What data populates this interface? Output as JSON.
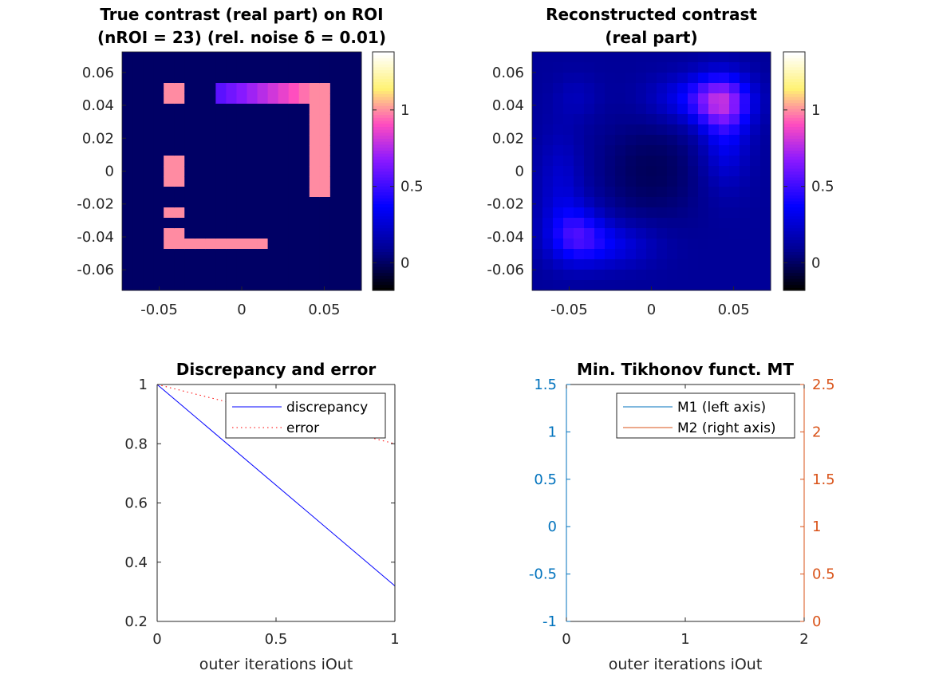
{
  "chart_data": [
    {
      "type": "heatmap",
      "title": [
        "True contrast (real part) on ROI",
        "(nROI = 23) (rel. noise δ = 0.01)"
      ],
      "x_ticks": [
        -0.05,
        0,
        0.05
      ],
      "y_ticks": [
        0.06,
        0.04,
        0.02,
        0,
        -0.02,
        -0.04,
        -0.06
      ],
      "x_tick_labels": [
        "-0.05",
        "0",
        "0.05"
      ],
      "y_tick_labels": [
        "0.06",
        "0.04",
        "0.02",
        "0",
        "-0.02",
        "-0.04",
        "-0.06"
      ],
      "xlim": [
        -0.0725,
        0.0725
      ],
      "ylim": [
        -0.0725,
        0.0725
      ],
      "grid_size": 23,
      "background": 0,
      "blocks": [
        {
          "x": [
            -0.05,
            -0.0375
          ],
          "y": [
            0.0425,
            0.055
          ],
          "value": 1.0
        },
        {
          "x": [
            -0.05,
            -0.0375
          ],
          "y": [
            0.005,
            0.0125
          ],
          "value": 1.0
        },
        {
          "x": [
            -0.05,
            -0.0375
          ],
          "y": [
            -0.0075,
            0.0
          ],
          "value": 1.0
        },
        {
          "x": [
            -0.05,
            -0.0375
          ],
          "y": [
            -0.03,
            -0.0225
          ],
          "value": 1.0
        },
        {
          "x": [
            -0.05,
            -0.0375
          ],
          "y": [
            -0.0475,
            -0.035
          ],
          "value": 1.0
        },
        {
          "x": [
            -0.0375,
            0.0175
          ],
          "y": [
            -0.0475,
            -0.0413
          ],
          "value": 1.0
        },
        {
          "x": [
            0.0425,
            0.055
          ],
          "y": [
            -0.015,
            0.055
          ],
          "value": 1.0
        },
        {
          "x": [
            -0.015,
            0.0425
          ],
          "y": [
            0.0425,
            0.055
          ],
          "gradient": [
            0.55,
            1.0
          ]
        }
      ],
      "colorbar": {
        "colormap": "gnuplot2",
        "limits": [
          -0.18,
          1.38
        ],
        "ticks": [
          0,
          0.5,
          1
        ],
        "tick_labels": [
          "0",
          "0.5",
          "1"
        ]
      }
    },
    {
      "type": "heatmap",
      "title": [
        "Reconstructed contrast",
        "(real part)"
      ],
      "x_ticks": [
        -0.05,
        0,
        0.05
      ],
      "y_ticks": [
        0.06,
        0.04,
        0.02,
        0,
        -0.02,
        -0.04,
        -0.06
      ],
      "x_tick_labels": [
        "-0.05",
        "0",
        "0.05"
      ],
      "y_tick_labels": [
        "0.06",
        "0.04",
        "0.02",
        "0",
        "-0.02",
        "-0.04",
        "-0.06"
      ],
      "xlim": [
        -0.0725,
        0.0725
      ],
      "ylim": [
        -0.0725,
        0.0725
      ],
      "grid_size": 23,
      "background": 0.1,
      "blobs": [
        {
          "x": 0.043,
          "y": 0.042,
          "sx": 0.012,
          "sy": 0.012,
          "amp": 0.42
        },
        {
          "x": 0.028,
          "y": 0.044,
          "sx": 0.02,
          "sy": 0.01,
          "amp": 0.25
        },
        {
          "x": 0.045,
          "y": 0.018,
          "sx": 0.01,
          "sy": 0.02,
          "amp": 0.22
        },
        {
          "x": -0.045,
          "y": -0.038,
          "sx": 0.012,
          "sy": 0.012,
          "amp": 0.3
        },
        {
          "x": -0.025,
          "y": -0.045,
          "sx": 0.02,
          "sy": 0.01,
          "amp": 0.2
        },
        {
          "x": -0.055,
          "y": -0.01,
          "sx": 0.01,
          "sy": 0.025,
          "amp": 0.15
        },
        {
          "x": -0.045,
          "y": 0.045,
          "sx": 0.01,
          "sy": 0.01,
          "amp": 0.08
        },
        {
          "x": 0.0,
          "y": 0.0,
          "sx": 0.022,
          "sy": 0.022,
          "amp": -0.12
        }
      ],
      "colorbar": {
        "colormap": "gnuplot2",
        "limits": [
          -0.18,
          1.38
        ],
        "ticks": [
          0,
          0.5,
          1
        ],
        "tick_labels": [
          "0",
          "0.5",
          "1"
        ]
      }
    },
    {
      "type": "line",
      "title": "Discrepancy and error",
      "xlabel": "outer iterations iOut",
      "ylabel": "",
      "xlim": [
        0,
        1
      ],
      "ylim": [
        0.2,
        1
      ],
      "x_ticks": [
        0,
        0.5,
        1
      ],
      "y_ticks": [
        0.2,
        0.4,
        0.6,
        0.8,
        1
      ],
      "x_tick_labels": [
        "0",
        "0.5",
        "1"
      ],
      "y_tick_labels": [
        "0.2",
        "0.4",
        "0.6",
        "0.8",
        "1"
      ],
      "legend": "top-right",
      "series": [
        {
          "name": "discrepancy",
          "x": [
            0,
            1
          ],
          "values": [
            1,
            0.32
          ],
          "color": "#0000ff",
          "style": "solid"
        },
        {
          "name": "error",
          "x": [
            0,
            1
          ],
          "values": [
            1,
            0.8
          ],
          "color": "#ff0000",
          "style": "dotted"
        }
      ]
    },
    {
      "type": "line",
      "title": "Min. Tikhonov funct. MT",
      "xlabel": "outer iterations iOut",
      "ylabel": "",
      "xlim": [
        0,
        2
      ],
      "ylim_left": [
        -1,
        1.5
      ],
      "ylim_right": [
        0,
        2.5
      ],
      "x_ticks": [
        0,
        1,
        2
      ],
      "x_tick_labels": [
        "0",
        "1",
        "2"
      ],
      "y_ticks_left": [
        -1,
        -0.5,
        0,
        0.5,
        1,
        1.5
      ],
      "y_tick_labels_left": [
        "-1",
        "-0.5",
        "0",
        "0.5",
        "1",
        "1.5"
      ],
      "y_ticks_right": [
        0,
        0.5,
        1,
        1.5,
        2,
        2.5
      ],
      "y_tick_labels_right": [
        "0",
        "0.5",
        "1",
        "1.5",
        "2",
        "2.5"
      ],
      "legend": "top-right",
      "left_axis_color": "#0072bd",
      "right_axis_color": "#d95319",
      "series": [
        {
          "name": "M1 (left axis)",
          "x": [],
          "values": [],
          "color": "#0072bd",
          "axis": "left"
        },
        {
          "name": "M2 (right axis)",
          "x": [],
          "values": [],
          "color": "#d95319",
          "axis": "right"
        }
      ]
    }
  ]
}
